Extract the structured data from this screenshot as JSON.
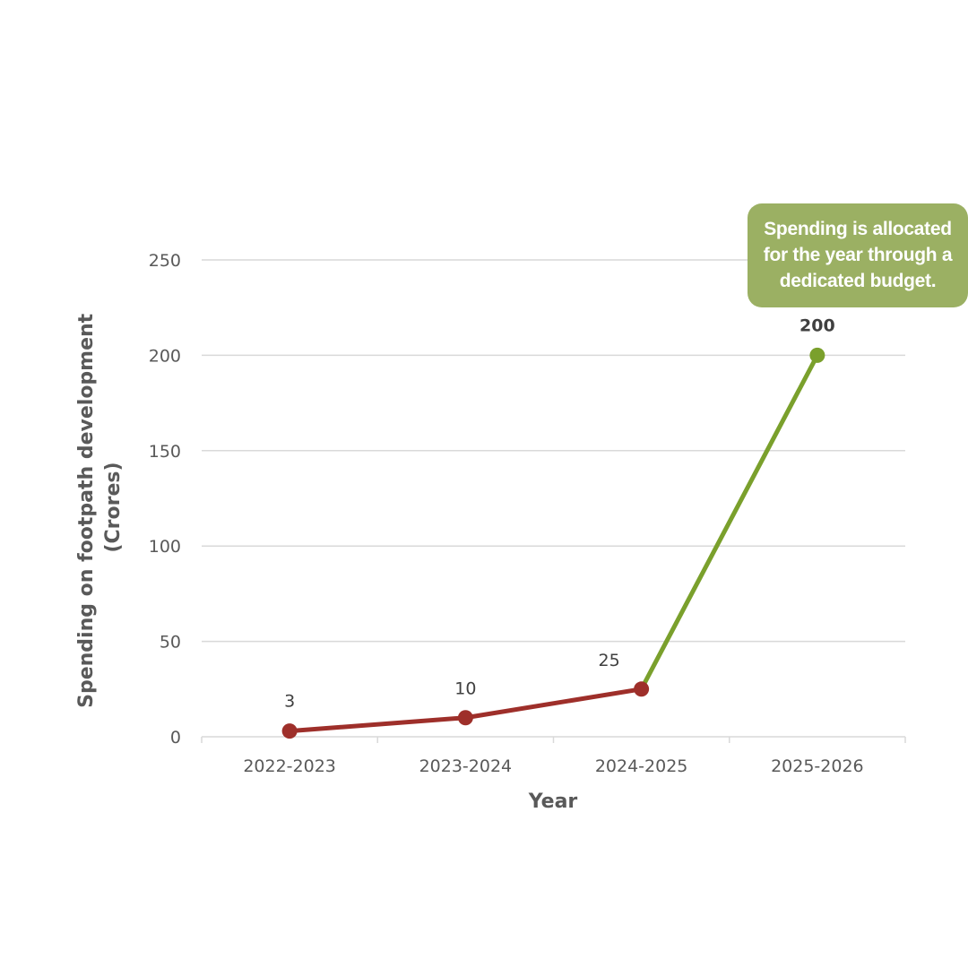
{
  "chart_data": {
    "type": "line",
    "categories": [
      "2022-2023",
      "2023-2024",
      "2024-2025",
      "2025-2026"
    ],
    "values": [
      3,
      10,
      25,
      200
    ],
    "data_labels": [
      "3",
      "10",
      "25",
      "200"
    ],
    "xlabel": "Year",
    "ylabel_lines": [
      "Spending on footpath development",
      "(Crores)"
    ],
    "yticks": [
      "0",
      "50",
      "100",
      "150",
      "200",
      "250"
    ],
    "ylim": [
      0,
      250
    ],
    "grid": true,
    "segments": [
      {
        "from": 0,
        "to": 2,
        "color": "#9e2f2a"
      },
      {
        "from": 2,
        "to": 3,
        "color": "#7aa02c"
      }
    ],
    "annotation": "Spending is allocated for the year through a dedicated budget."
  },
  "colors": {
    "actual": "#9e2f2a",
    "allocated": "#7aa02c",
    "callout_bg": "#9bb063",
    "grid": "#d9d9d9"
  }
}
